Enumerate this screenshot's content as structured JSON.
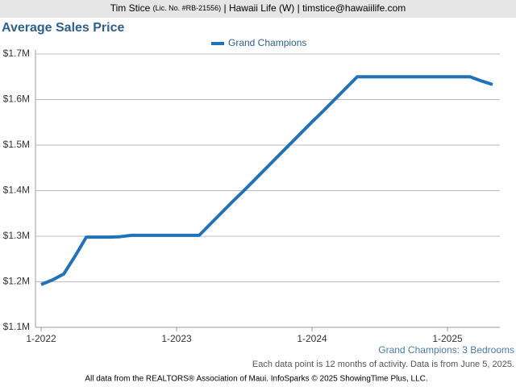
{
  "header": {
    "name": "Tim Stice",
    "license": "(Lic. No. #RB-21556)",
    "rest": "| Hawaii Life (W) | timstice@hawaiilife.com"
  },
  "chart_data": {
    "type": "line",
    "title": "Average Sales Price",
    "subtitle": "Grand Champions: 3 Bedrooms",
    "categories": [
      "1-2022",
      null,
      null,
      null,
      null,
      null,
      null,
      null,
      null,
      null,
      null,
      null,
      "1-2023",
      null,
      null,
      null,
      null,
      null,
      null,
      null,
      null,
      null,
      null,
      null,
      "1-2024",
      null,
      null,
      null,
      null,
      null,
      null,
      null,
      null,
      null,
      null,
      null,
      "1-2025",
      null,
      null,
      null,
      null
    ],
    "series": [
      {
        "name": "Grand Champions",
        "color": "#2272b9",
        "values": [
          1194000,
          1204000,
          1217000,
          1256000,
          1298000,
          1298000,
          1298000,
          1299000,
          1302000,
          1302000,
          1302000,
          1302000,
          1302000,
          1302000,
          1302000,
          1327000,
          1352000,
          1377000,
          1401000,
          1426000,
          1451000,
          1476000,
          1501000,
          1526000,
          1551000,
          1575000,
          1600000,
          1625000,
          1650000,
          1650000,
          1650000,
          1650000,
          1650000,
          1650000,
          1650000,
          1650000,
          1650000,
          1650000,
          1650000,
          1641000,
          1633000
        ]
      }
    ],
    "ylim": [
      1100000,
      1700000
    ],
    "yticks": [
      {
        "value": 1100000,
        "label": "$1.1M"
      },
      {
        "value": 1200000,
        "label": "$1.2M"
      },
      {
        "value": 1300000,
        "label": "$1.3M"
      },
      {
        "value": 1400000,
        "label": "$1.4M"
      },
      {
        "value": 1500000,
        "label": "$1.5M"
      },
      {
        "value": 1600000,
        "label": "$1.6M"
      },
      {
        "value": 1700000,
        "label": "$1.7M"
      }
    ],
    "grid": true
  },
  "footer": {
    "note": "Each data point is 12 months of activity. Data is from June 5, 2025.",
    "source": "All data from the REALTORS® Association of Maui. InfoSparks © 2025 ShowingTime Plus, LLC."
  }
}
